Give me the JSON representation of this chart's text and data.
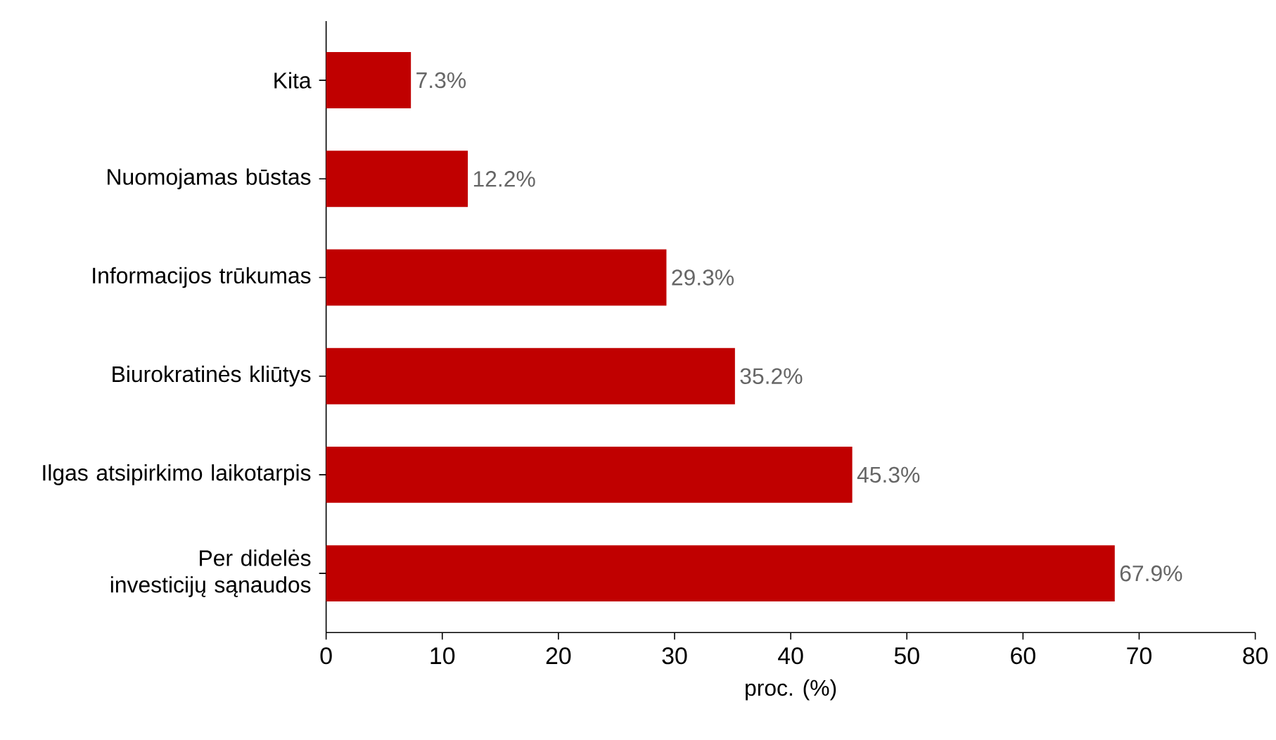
{
  "chart_data": {
    "type": "bar",
    "orientation": "horizontal",
    "xlabel": "proc. (%)",
    "categories": [
      "Kita",
      "Nuomojamas būstas",
      "Informacijos trūkumas",
      "Biurokratinės kliūtys",
      "Ilgas atsipirkimo laikotarpis",
      "Per didelės investicijų sąnaudos"
    ],
    "values": [
      7.3,
      12.2,
      29.3,
      35.2,
      45.3,
      67.9
    ],
    "value_labels": [
      "7.3%",
      "12.2%",
      "29.3%",
      "35.2%",
      "45.3%",
      "67.9%"
    ],
    "color": "#c00000",
    "xlim": [
      0,
      80
    ],
    "xticks": [
      0,
      10,
      20,
      30,
      40,
      50,
      60,
      70,
      80
    ]
  }
}
